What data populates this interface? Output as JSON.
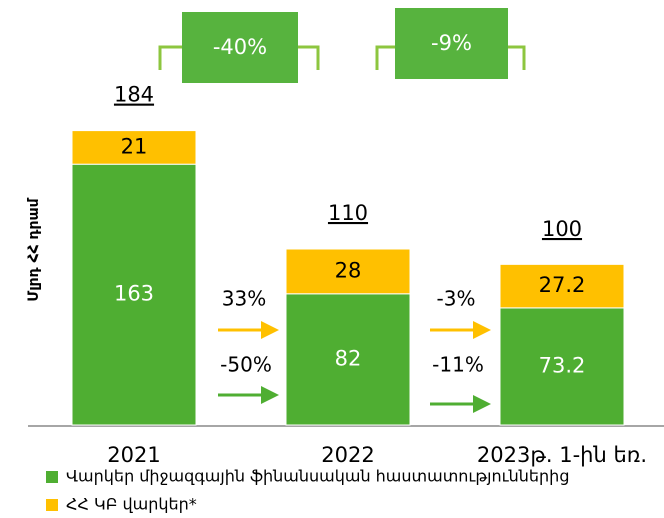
{
  "chart_data": {
    "type": "stacked_bar",
    "y_label": "Մլրդ ՀՀ դրամ",
    "categories": [
      "2021",
      "2022",
      "2023թ. 1-ին եռ."
    ],
    "series": [
      {
        "name": "Վարկեր միջազգային ֆինանսական հաստատություններից",
        "color": "#4fae32",
        "values": [
          163,
          82,
          73.2
        ]
      },
      {
        "name": "ՀՀ ԿԲ վարկեր*",
        "color": "#ffc000",
        "values": [
          21,
          28,
          27.2
        ]
      }
    ],
    "totals": [
      184,
      110,
      100
    ],
    "total_changes": [
      "-40%",
      "-9%"
    ],
    "series_changes": [
      {
        "series_0": "-50%",
        "series_1": "33%"
      },
      {
        "series_0": "-11%",
        "series_1": "-3%"
      }
    ]
  }
}
